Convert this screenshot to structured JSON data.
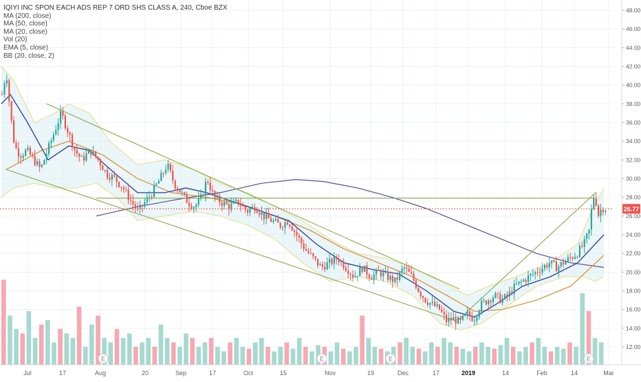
{
  "legend": {
    "title": "IQIYI INC SPON EACH ADS REP 7 ORD SHS CLASS A, 240, Cboe BZX",
    "indicators": [
      "MA (200, close)",
      "MA (50, close)",
      "MA (20, close)",
      "Vol (20)",
      "EMA (5, close)",
      "BB (20, close, 2)"
    ]
  },
  "chart_data": {
    "type": "candlestick",
    "title": "IQIYI INC SPON EACH ADS REP 7 ORD SHS CLASS A, 240, Cboe BZX",
    "y_ticks": [
      "48.00",
      "46.00",
      "44.00",
      "42.00",
      "40.00",
      "38.00",
      "36.00",
      "34.00",
      "32.00",
      "30.00",
      "28.00",
      "26.00",
      "24.00",
      "22.00",
      "20.00",
      "18.00",
      "16.00",
      "14.00",
      "12.00"
    ],
    "ylim": [
      12,
      49
    ],
    "x_ticks": [
      "Jul",
      "17",
      "Aug",
      "20",
      "Sep",
      "17",
      "Oct",
      "15",
      "Nov",
      "19",
      "Dec",
      "17",
      "2019",
      "14",
      "Feb",
      "14",
      "Mar"
    ],
    "last_price": "26.77",
    "earnings_markers": [
      "E",
      "E",
      "E",
      "E"
    ],
    "price_path": [
      {
        "x": 2,
        "y": 39.0
      },
      {
        "x": 8,
        "y": 41.5
      },
      {
        "x": 14,
        "y": 37.0
      },
      {
        "x": 20,
        "y": 33.5
      },
      {
        "x": 28,
        "y": 32.5
      },
      {
        "x": 38,
        "y": 33.0
      },
      {
        "x": 48,
        "y": 32.0
      },
      {
        "x": 58,
        "y": 31.0
      },
      {
        "x": 68,
        "y": 33.0
      },
      {
        "x": 78,
        "y": 35.0
      },
      {
        "x": 88,
        "y": 37.0
      },
      {
        "x": 98,
        "y": 35.0
      },
      {
        "x": 108,
        "y": 33.0
      },
      {
        "x": 118,
        "y": 32.0
      },
      {
        "x": 130,
        "y": 33.0
      },
      {
        "x": 142,
        "y": 32.0
      },
      {
        "x": 154,
        "y": 30.5
      },
      {
        "x": 166,
        "y": 30.0
      },
      {
        "x": 178,
        "y": 29.0
      },
      {
        "x": 190,
        "y": 27.5
      },
      {
        "x": 200,
        "y": 26.5
      },
      {
        "x": 210,
        "y": 27.5
      },
      {
        "x": 220,
        "y": 28.5
      },
      {
        "x": 232,
        "y": 30.0
      },
      {
        "x": 242,
        "y": 31.5
      },
      {
        "x": 252,
        "y": 29.5
      },
      {
        "x": 262,
        "y": 28.5
      },
      {
        "x": 272,
        "y": 27.5
      },
      {
        "x": 282,
        "y": 27.0
      },
      {
        "x": 292,
        "y": 28.0
      },
      {
        "x": 300,
        "y": 30.0
      },
      {
        "x": 310,
        "y": 28.0
      },
      {
        "x": 320,
        "y": 27.5
      },
      {
        "x": 332,
        "y": 27.0
      },
      {
        "x": 345,
        "y": 27.5
      },
      {
        "x": 358,
        "y": 26.5
      },
      {
        "x": 370,
        "y": 27.0
      },
      {
        "x": 382,
        "y": 26.0
      },
      {
        "x": 394,
        "y": 25.5
      },
      {
        "x": 406,
        "y": 25.0
      },
      {
        "x": 418,
        "y": 25.5
      },
      {
        "x": 430,
        "y": 24.0
      },
      {
        "x": 442,
        "y": 22.5
      },
      {
        "x": 454,
        "y": 21.5
      },
      {
        "x": 466,
        "y": 20.5
      },
      {
        "x": 478,
        "y": 21.0
      },
      {
        "x": 490,
        "y": 21.5
      },
      {
        "x": 502,
        "y": 20.5
      },
      {
        "x": 514,
        "y": 19.5
      },
      {
        "x": 526,
        "y": 20.5
      },
      {
        "x": 538,
        "y": 19.5
      },
      {
        "x": 550,
        "y": 20.0
      },
      {
        "x": 562,
        "y": 19.5
      },
      {
        "x": 574,
        "y": 19.0
      },
      {
        "x": 586,
        "y": 20.5
      },
      {
        "x": 598,
        "y": 19.5
      },
      {
        "x": 608,
        "y": 18.0
      },
      {
        "x": 618,
        "y": 17.0
      },
      {
        "x": 628,
        "y": 16.5
      },
      {
        "x": 638,
        "y": 16.0
      },
      {
        "x": 648,
        "y": 14.8
      },
      {
        "x": 658,
        "y": 15.0
      },
      {
        "x": 668,
        "y": 14.6
      },
      {
        "x": 678,
        "y": 15.5
      },
      {
        "x": 688,
        "y": 15.0
      },
      {
        "x": 698,
        "y": 16.5
      },
      {
        "x": 708,
        "y": 17.0
      },
      {
        "x": 718,
        "y": 17.5
      },
      {
        "x": 728,
        "y": 17.0
      },
      {
        "x": 738,
        "y": 17.5
      },
      {
        "x": 748,
        "y": 18.5
      },
      {
        "x": 758,
        "y": 19.0
      },
      {
        "x": 768,
        "y": 19.5
      },
      {
        "x": 778,
        "y": 20.0
      },
      {
        "x": 788,
        "y": 20.5
      },
      {
        "x": 798,
        "y": 21.0
      },
      {
        "x": 808,
        "y": 20.5
      },
      {
        "x": 818,
        "y": 21.0
      },
      {
        "x": 828,
        "y": 21.5
      },
      {
        "x": 838,
        "y": 22.0
      },
      {
        "x": 848,
        "y": 23.0
      },
      {
        "x": 856,
        "y": 24.5
      },
      {
        "x": 860,
        "y": 27.5
      },
      {
        "x": 864,
        "y": 28.5
      },
      {
        "x": 868,
        "y": 26.0
      },
      {
        "x": 874,
        "y": 26.9
      },
      {
        "x": 880,
        "y": 26.77
      }
    ],
    "ma200": [
      {
        "x": 140,
        "y": 26.0
      },
      {
        "x": 200,
        "y": 27.0
      },
      {
        "x": 260,
        "y": 27.8
      },
      {
        "x": 320,
        "y": 28.5
      },
      {
        "x": 380,
        "y": 29.5
      },
      {
        "x": 430,
        "y": 29.9
      },
      {
        "x": 470,
        "y": 29.7
      },
      {
        "x": 520,
        "y": 29.0
      },
      {
        "x": 570,
        "y": 28.0
      },
      {
        "x": 620,
        "y": 26.8
      },
      {
        "x": 680,
        "y": 25.0
      },
      {
        "x": 730,
        "y": 23.5
      },
      {
        "x": 780,
        "y": 22.0
      },
      {
        "x": 830,
        "y": 21.0
      },
      {
        "x": 878,
        "y": 20.5
      }
    ],
    "ma50": [
      {
        "x": 10,
        "y": 31.0
      },
      {
        "x": 60,
        "y": 33.0
      },
      {
        "x": 100,
        "y": 34.0
      },
      {
        "x": 150,
        "y": 32.5
      },
      {
        "x": 200,
        "y": 30.0
      },
      {
        "x": 250,
        "y": 28.5
      },
      {
        "x": 300,
        "y": 28.0
      },
      {
        "x": 350,
        "y": 27.3
      },
      {
        "x": 400,
        "y": 26.0
      },
      {
        "x": 450,
        "y": 24.5
      },
      {
        "x": 500,
        "y": 22.5
      },
      {
        "x": 550,
        "y": 21.0
      },
      {
        "x": 600,
        "y": 19.5
      },
      {
        "x": 650,
        "y": 17.5
      },
      {
        "x": 690,
        "y": 15.8
      },
      {
        "x": 730,
        "y": 16.0
      },
      {
        "x": 780,
        "y": 17.0
      },
      {
        "x": 830,
        "y": 18.5
      },
      {
        "x": 878,
        "y": 21.8
      }
    ],
    "ma20": [
      {
        "x": 2,
        "y": 38.0
      },
      {
        "x": 15,
        "y": 39.0
      },
      {
        "x": 40,
        "y": 36.0
      },
      {
        "x": 70,
        "y": 32.0
      },
      {
        "x": 100,
        "y": 33.5
      },
      {
        "x": 130,
        "y": 33.0
      },
      {
        "x": 160,
        "y": 31.0
      },
      {
        "x": 200,
        "y": 28.5
      },
      {
        "x": 240,
        "y": 28.5
      },
      {
        "x": 270,
        "y": 29.0
      },
      {
        "x": 300,
        "y": 28.5
      },
      {
        "x": 340,
        "y": 27.5
      },
      {
        "x": 380,
        "y": 26.5
      },
      {
        "x": 420,
        "y": 25.5
      },
      {
        "x": 460,
        "y": 23.0
      },
      {
        "x": 500,
        "y": 21.0
      },
      {
        "x": 540,
        "y": 20.3
      },
      {
        "x": 580,
        "y": 19.8
      },
      {
        "x": 620,
        "y": 18.0
      },
      {
        "x": 660,
        "y": 15.8
      },
      {
        "x": 690,
        "y": 15.2
      },
      {
        "x": 720,
        "y": 16.5
      },
      {
        "x": 760,
        "y": 18.5
      },
      {
        "x": 800,
        "y": 19.5
      },
      {
        "x": 840,
        "y": 21.0
      },
      {
        "x": 878,
        "y": 24.0
      }
    ],
    "bb_upper": [
      {
        "x": 2,
        "y": 42.0
      },
      {
        "x": 20,
        "y": 40.5
      },
      {
        "x": 50,
        "y": 36.0
      },
      {
        "x": 80,
        "y": 37.0
      },
      {
        "x": 100,
        "y": 38.0
      },
      {
        "x": 130,
        "y": 37.0
      },
      {
        "x": 160,
        "y": 34.0
      },
      {
        "x": 200,
        "y": 31.5
      },
      {
        "x": 240,
        "y": 32.0
      },
      {
        "x": 280,
        "y": 31.0
      },
      {
        "x": 320,
        "y": 29.5
      },
      {
        "x": 360,
        "y": 28.5
      },
      {
        "x": 400,
        "y": 27.0
      },
      {
        "x": 440,
        "y": 25.5
      },
      {
        "x": 480,
        "y": 23.5
      },
      {
        "x": 520,
        "y": 22.0
      },
      {
        "x": 560,
        "y": 21.5
      },
      {
        "x": 600,
        "y": 20.5
      },
      {
        "x": 640,
        "y": 19.0
      },
      {
        "x": 680,
        "y": 17.5
      },
      {
        "x": 710,
        "y": 18.5
      },
      {
        "x": 750,
        "y": 19.5
      },
      {
        "x": 800,
        "y": 21.0
      },
      {
        "x": 840,
        "y": 23.0
      },
      {
        "x": 860,
        "y": 26.5
      },
      {
        "x": 878,
        "y": 29.0
      }
    ],
    "bb_lower": [
      {
        "x": 2,
        "y": 28.0
      },
      {
        "x": 20,
        "y": 29.0
      },
      {
        "x": 50,
        "y": 29.5
      },
      {
        "x": 80,
        "y": 29.0
      },
      {
        "x": 110,
        "y": 29.0
      },
      {
        "x": 140,
        "y": 29.5
      },
      {
        "x": 170,
        "y": 28.0
      },
      {
        "x": 200,
        "y": 25.5
      },
      {
        "x": 240,
        "y": 26.0
      },
      {
        "x": 280,
        "y": 26.5
      },
      {
        "x": 320,
        "y": 26.0
      },
      {
        "x": 360,
        "y": 25.0
      },
      {
        "x": 400,
        "y": 23.5
      },
      {
        "x": 440,
        "y": 21.0
      },
      {
        "x": 480,
        "y": 19.0
      },
      {
        "x": 520,
        "y": 19.5
      },
      {
        "x": 560,
        "y": 19.0
      },
      {
        "x": 600,
        "y": 17.5
      },
      {
        "x": 640,
        "y": 14.5
      },
      {
        "x": 670,
        "y": 13.8
      },
      {
        "x": 700,
        "y": 14.5
      },
      {
        "x": 740,
        "y": 16.5
      },
      {
        "x": 780,
        "y": 18.5
      },
      {
        "x": 820,
        "y": 19.5
      },
      {
        "x": 850,
        "y": 19.5
      },
      {
        "x": 865,
        "y": 19.0
      },
      {
        "x": 878,
        "y": 19.5
      }
    ],
    "trendlines": [
      {
        "x1": 68,
        "y1": 38.0,
        "x2": 668,
        "y2": 18.2
      },
      {
        "x1": 8,
        "y1": 31.0,
        "x2": 662,
        "y2": 14.8
      },
      {
        "x1": 140,
        "y1": 27.9,
        "x2": 865,
        "y2": 27.9
      },
      {
        "x1": 665,
        "y1": 14.8,
        "x2": 866,
        "y2": 28.5
      }
    ],
    "volume_levels": [
      0.95,
      0.55,
      0.4,
      0.35,
      0.6,
      0.3,
      0.45,
      0.5,
      0.25,
      0.4,
      0.35,
      0.3,
      0.65,
      0.2,
      0.45,
      0.55,
      0.3,
      0.25,
      0.4,
      0.3,
      0.35,
      0.2,
      0.25,
      0.3,
      0.2,
      0.45,
      0.3,
      0.25,
      0.2,
      0.35,
      0.3,
      0.2,
      0.25,
      0.3,
      0.2,
      0.15,
      0.25,
      0.3,
      0.2,
      0.18,
      0.25,
      0.3,
      0.2,
      0.15,
      0.2,
      0.25,
      0.18,
      0.3,
      0.2,
      0.15,
      0.22,
      0.2,
      0.15,
      0.25,
      0.18,
      0.15,
      0.2,
      0.55,
      0.3,
      0.2,
      0.18,
      0.15,
      0.2,
      0.25,
      0.3,
      0.2,
      0.18,
      0.15,
      0.25,
      0.2,
      0.3,
      0.25,
      0.2,
      0.18,
      0.15,
      0.2,
      0.25,
      0.2,
      0.18,
      0.22,
      0.3,
      0.2,
      0.15,
      0.2,
      0.25,
      0.3,
      0.2,
      0.15,
      0.2,
      0.18,
      0.25,
      0.2,
      0.8,
      0.6,
      0.3,
      0.25
    ]
  }
}
